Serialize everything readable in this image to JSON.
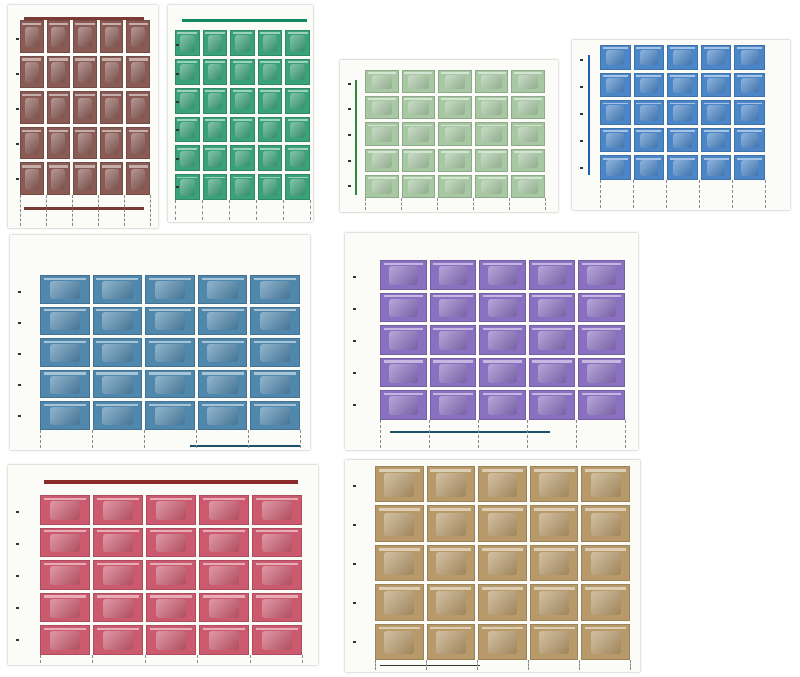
{
  "sheets": [
    {
      "color": "#8a5a55",
      "bar": "#7a3b35",
      "rows": 5,
      "cols": 5
    },
    {
      "color": "#3aa27a",
      "bar": "#0f8a62",
      "rows": 6,
      "cols": 5
    },
    {
      "color": "#a8c8a4",
      "bar": "#2c8a3c",
      "rows": 5,
      "cols": 5
    },
    {
      "color": "#4a86c8",
      "bar": "#1f5fb0",
      "rows": 5,
      "cols": 5
    },
    {
      "color": "#4f87ad",
      "bar": "#1e4f6a",
      "rows": 5,
      "cols": 5
    },
    {
      "color": "#8a70c0",
      "bar": "#1e4f6a",
      "rows": 5,
      "cols": 5
    },
    {
      "color": "#cc5a6e",
      "bar": "#8a2a2a",
      "rows": 5,
      "cols": 5
    },
    {
      "color": "#b89a6a",
      "bar": "#333333",
      "rows": 5,
      "cols": 5
    }
  ]
}
